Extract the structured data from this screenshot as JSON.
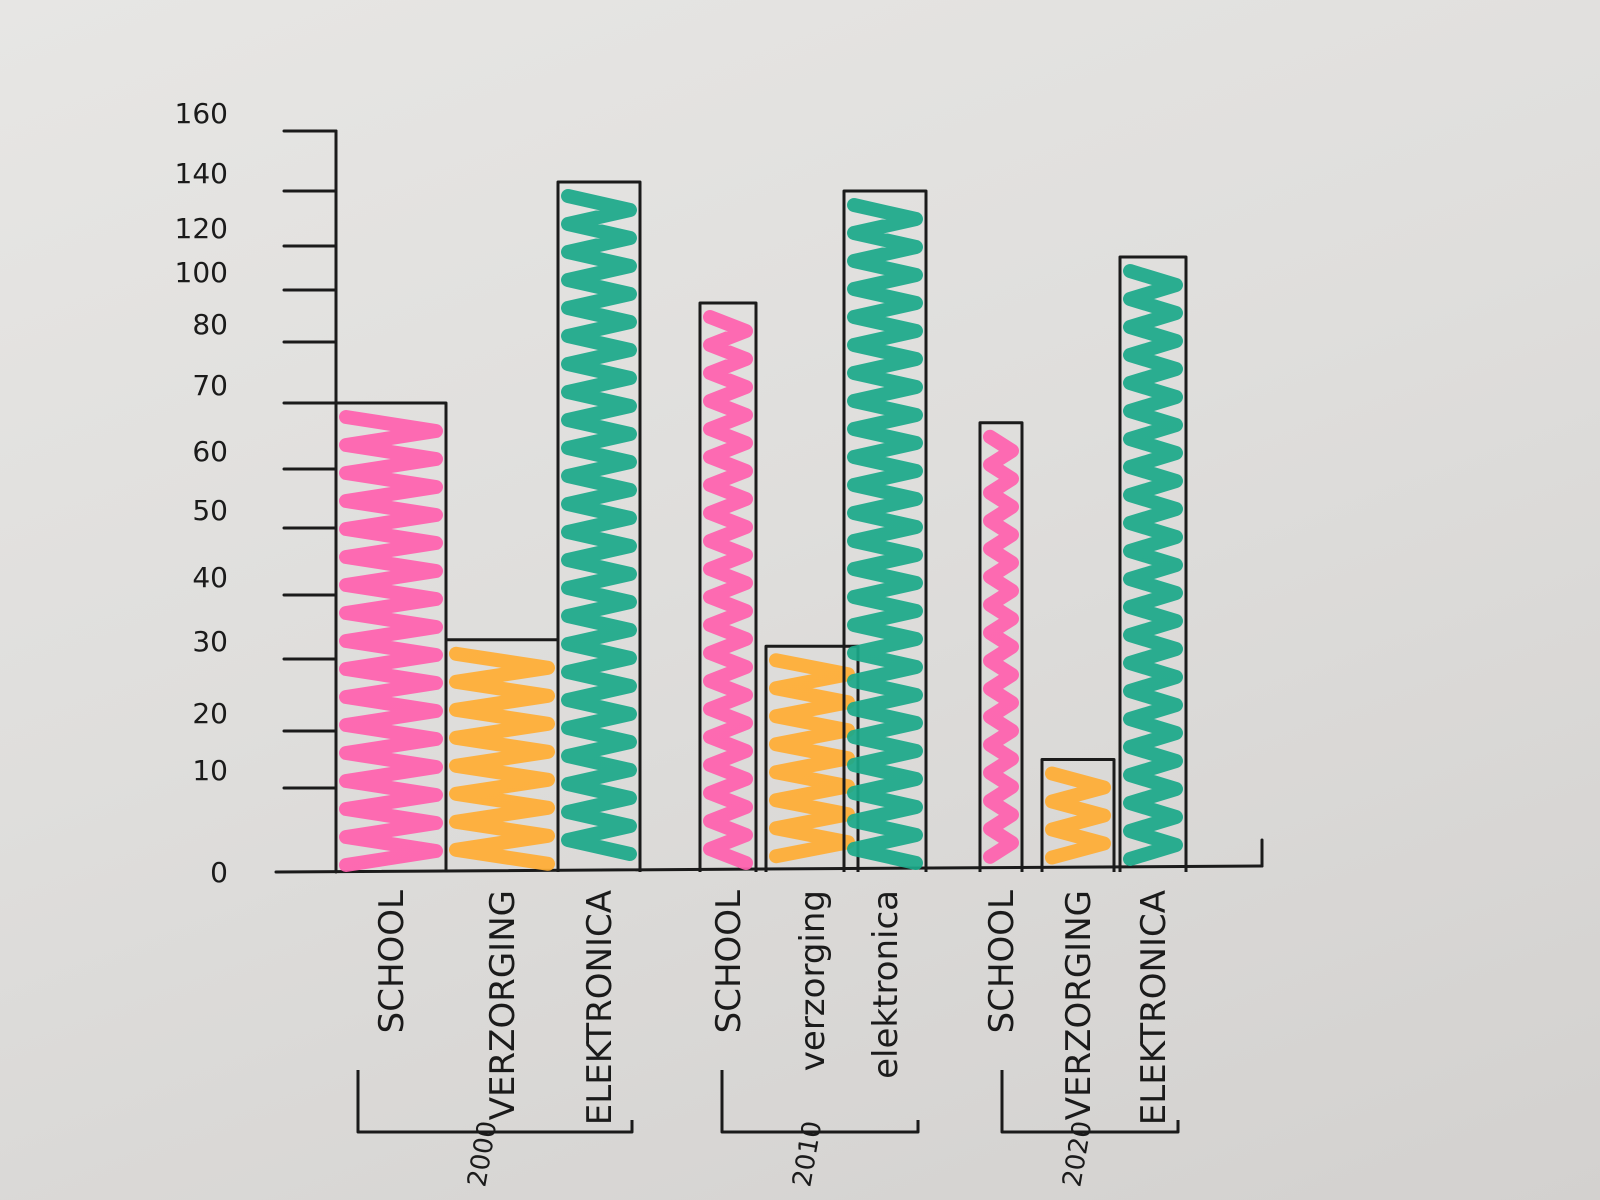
{
  "chart_data": {
    "type": "bar",
    "title": "",
    "xlabel": "",
    "ylabel": "",
    "y_tick_labels": [
      "0",
      "10",
      "20",
      "30",
      "40",
      "50",
      "60",
      "70",
      "80",
      "100",
      "120",
      "140",
      "160"
    ],
    "groups": [
      {
        "label": "2000",
        "bars": [
          {
            "category": "SCHOOL",
            "value": 70
          },
          {
            "category": "VERZORGING",
            "value": 33
          },
          {
            "category": "ELEKTRONICA",
            "value": 143
          }
        ]
      },
      {
        "label": "2010",
        "bars": [
          {
            "category": "SCHOOL",
            "value": 95
          },
          {
            "category": "verzorging",
            "value": 32
          },
          {
            "category": "elektronica",
            "value": 140
          }
        ]
      },
      {
        "label": "2020",
        "bars": [
          {
            "category": "SCHOOL",
            "value": 67
          },
          {
            "category": "VERZORGING",
            "value": 15
          },
          {
            "category": "ELEKTRONICA",
            "value": 115
          }
        ]
      }
    ],
    "colors": {
      "SCHOOL": "#ff5fae",
      "VERZORGING": "#ffad33",
      "ELEKTRONICA": "#1aa889",
      "outline": "#1b1b1b"
    },
    "grid": false,
    "legend": "none"
  }
}
